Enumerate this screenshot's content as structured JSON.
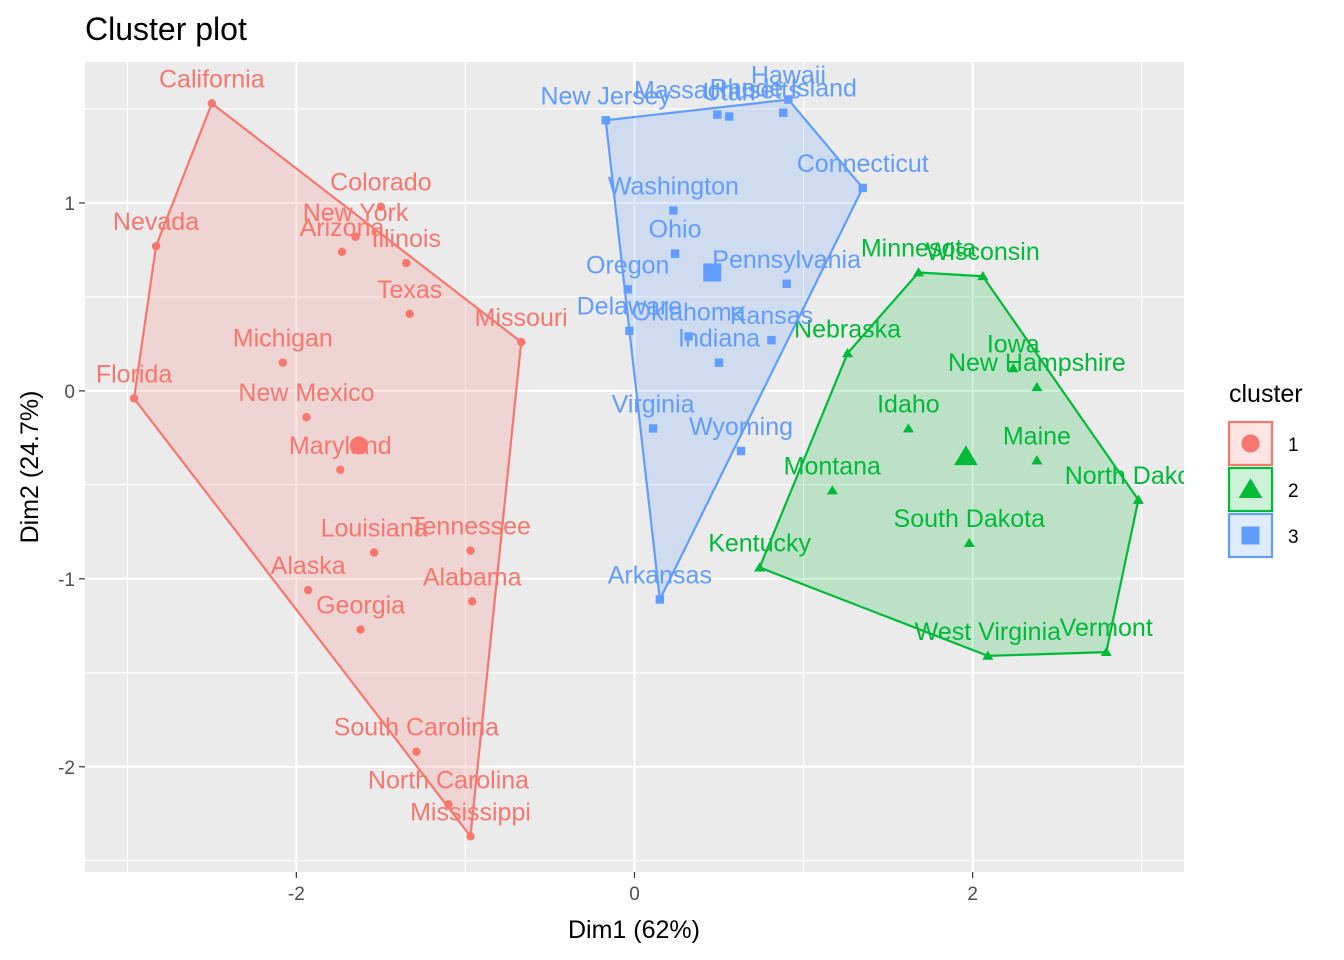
{
  "chart_data": {
    "type": "scatter",
    "title": "Cluster plot",
    "xlabel": "Dim1 (62%)",
    "ylabel": "Dim2 (24.7%)",
    "xlim": [
      -3.25,
      3.25
    ],
    "ylim": [
      -2.56,
      1.75
    ],
    "xticks": [
      -2,
      0,
      2
    ],
    "yticks": [
      -2,
      -1,
      0,
      1
    ],
    "grid": true,
    "legend": {
      "title": "cluster",
      "position": "right"
    },
    "series": [
      {
        "name": "1",
        "color": "#F8766D",
        "fill": "#F8766D",
        "shape": "circle",
        "center": [
          -1.63,
          -0.29
        ],
        "points": [
          {
            "label": "California",
            "x": -2.5,
            "y": 1.53
          },
          {
            "label": "Colorado",
            "x": -1.5,
            "y": 0.98
          },
          {
            "label": "New York",
            "x": -1.65,
            "y": 0.82
          },
          {
            "label": "Nevada",
            "x": -2.83,
            "y": 0.77
          },
          {
            "label": "Arizona",
            "x": -1.73,
            "y": 0.74
          },
          {
            "label": "Illinois",
            "x": -1.35,
            "y": 0.68
          },
          {
            "label": "Texas",
            "x": -1.33,
            "y": 0.41
          },
          {
            "label": "Missouri",
            "x": -0.67,
            "y": 0.26
          },
          {
            "label": "Michigan",
            "x": -2.08,
            "y": 0.15
          },
          {
            "label": "Florida",
            "x": -2.96,
            "y": -0.04
          },
          {
            "label": "New Mexico",
            "x": -1.94,
            "y": -0.14
          },
          {
            "label": "Maryland",
            "x": -1.74,
            "y": -0.42
          },
          {
            "label": "Louisiana",
            "x": -1.54,
            "y": -0.86
          },
          {
            "label": "Tennessee",
            "x": -0.97,
            "y": -0.85
          },
          {
            "label": "Alaska",
            "x": -1.93,
            "y": -1.06
          },
          {
            "label": "Alabama",
            "x": -0.96,
            "y": -1.12
          },
          {
            "label": "Georgia",
            "x": -1.62,
            "y": -1.27
          },
          {
            "label": "South Carolina",
            "x": -1.29,
            "y": -1.92
          },
          {
            "label": "North Carolina",
            "x": -1.1,
            "y": -2.2
          },
          {
            "label": "Mississippi",
            "x": -0.97,
            "y": -2.37
          }
        ],
        "hull": [
          "California",
          "Missouri",
          "Mississippi",
          "Florida",
          "Nevada"
        ]
      },
      {
        "name": "2",
        "color": "#00BA38",
        "fill": "#00BA38",
        "shape": "triangle",
        "center": [
          1.96,
          -0.35
        ],
        "points": [
          {
            "label": "Minnesota",
            "x": 1.68,
            "y": 0.63
          },
          {
            "label": "Wisconsin",
            "x": 2.06,
            "y": 0.61
          },
          {
            "label": "Nebraska",
            "x": 1.26,
            "y": 0.2
          },
          {
            "label": "Iowa",
            "x": 2.24,
            "y": 0.12
          },
          {
            "label": "New Hampshire",
            "x": 2.38,
            "y": 0.02
          },
          {
            "label": "Idaho",
            "x": 1.62,
            "y": -0.2
          },
          {
            "label": "Maine",
            "x": 2.38,
            "y": -0.37
          },
          {
            "label": "Montana",
            "x": 1.17,
            "y": -0.53
          },
          {
            "label": "North Dakota",
            "x": 2.98,
            "y": -0.58
          },
          {
            "label": "South Dakota",
            "x": 1.98,
            "y": -0.81
          },
          {
            "label": "Kentucky",
            "x": 0.74,
            "y": -0.94
          },
          {
            "label": "West Virginia",
            "x": 2.09,
            "y": -1.41
          },
          {
            "label": "Vermont",
            "x": 2.79,
            "y": -1.39
          }
        ],
        "hull": [
          "Minnesota",
          "Wisconsin",
          "North Dakota",
          "Vermont",
          "West Virginia",
          "Kentucky",
          "Nebraska"
        ]
      },
      {
        "name": "3",
        "color": "#619CFF",
        "fill": "#619CFF",
        "shape": "square",
        "center": [
          0.46,
          0.63
        ],
        "points": [
          {
            "label": "Hawaii",
            "x": 0.91,
            "y": 1.55
          },
          {
            "label": "Rhode Island",
            "x": 0.88,
            "y": 1.48
          },
          {
            "label": "Massachusetts",
            "x": 0.49,
            "y": 1.47
          },
          {
            "label": "Utah",
            "x": 0.56,
            "y": 1.46
          },
          {
            "label": "New Jersey",
            "x": -0.17,
            "y": 1.44
          },
          {
            "label": "Connecticut",
            "x": 1.35,
            "y": 1.08
          },
          {
            "label": "Washington",
            "x": 0.23,
            "y": 0.96
          },
          {
            "label": "Ohio",
            "x": 0.24,
            "y": 0.73
          },
          {
            "label": "Pennsylvania",
            "x": 0.9,
            "y": 0.57
          },
          {
            "label": "Oregon",
            "x": -0.04,
            "y": 0.54
          },
          {
            "label": "Delaware",
            "x": -0.03,
            "y": 0.32
          },
          {
            "label": "Oklahoma",
            "x": 0.32,
            "y": 0.29
          },
          {
            "label": "Kansas",
            "x": 0.81,
            "y": 0.27
          },
          {
            "label": "Indiana",
            "x": 0.5,
            "y": 0.15
          },
          {
            "label": "Virginia",
            "x": 0.11,
            "y": -0.2
          },
          {
            "label": "Wyoming",
            "x": 0.63,
            "y": -0.32
          },
          {
            "label": "Arkansas",
            "x": 0.15,
            "y": -1.11
          }
        ],
        "hull": [
          "New Jersey",
          "Hawaii",
          "Connecticut",
          "Arkansas",
          "Delaware"
        ]
      }
    ]
  }
}
